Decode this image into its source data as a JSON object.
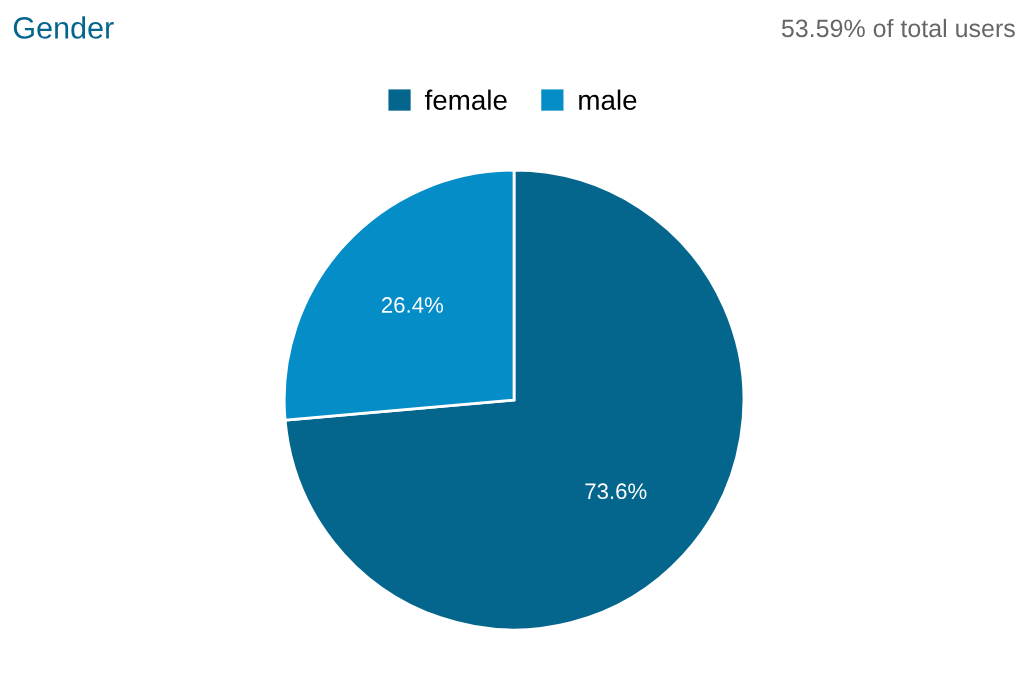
{
  "chart_data": {
    "type": "pie",
    "title": "Gender",
    "subtitle": "53.59% of total users",
    "categories": [
      "female",
      "male"
    ],
    "values": [
      73.6,
      26.4
    ],
    "colors": [
      "#05668d",
      "#058dc7"
    ],
    "value_labels": [
      "73.6%",
      "26.4%"
    ],
    "legend": "top"
  }
}
